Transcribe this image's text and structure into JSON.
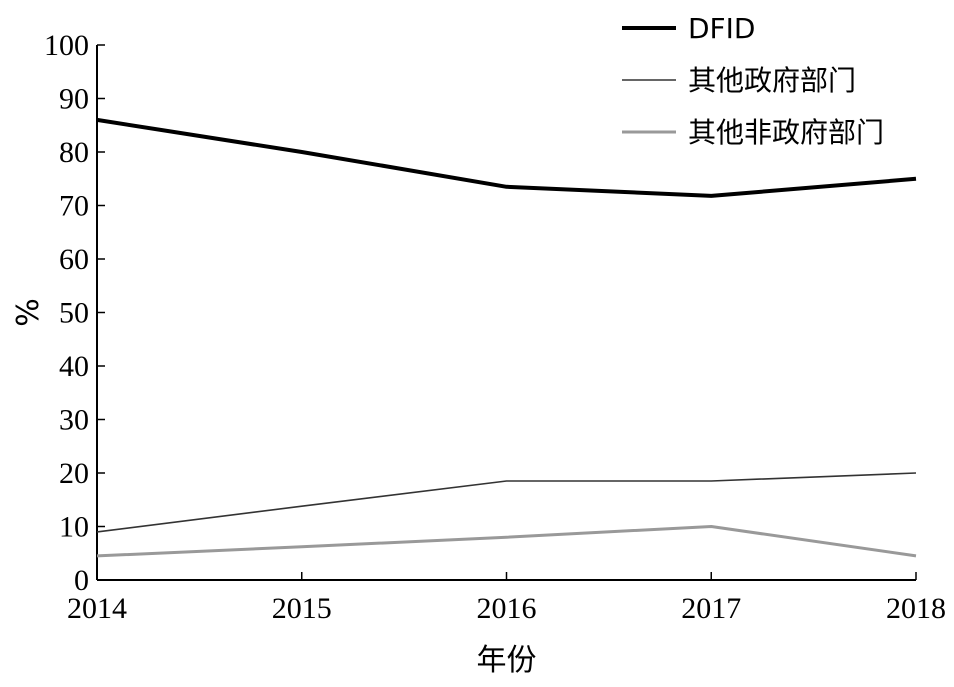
{
  "chart_data": {
    "type": "line",
    "title": "",
    "xlabel": "年份",
    "ylabel": "%",
    "categories": [
      "2014",
      "2015",
      "2016",
      "2017",
      "2018"
    ],
    "x": [
      2014,
      2015,
      2016,
      2017,
      2018
    ],
    "xlim": [
      2014,
      2018
    ],
    "ylim": [
      0,
      100
    ],
    "yticks": [
      0,
      10,
      20,
      30,
      40,
      50,
      60,
      70,
      80,
      90,
      100
    ],
    "grid": false,
    "legend_position": "top-right",
    "series": [
      {
        "name": "DFID",
        "values": [
          86,
          80,
          73.5,
          71.8,
          75
        ],
        "color": "#000000",
        "weight": "thick"
      },
      {
        "name": "其他政府部门",
        "values": [
          9,
          13.8,
          18.5,
          18.5,
          20
        ],
        "color": "#333333",
        "weight": "thin"
      },
      {
        "name": "其他非政府部门",
        "values": [
          4.5,
          6.2,
          8,
          10,
          4.5
        ],
        "color": "#999999",
        "weight": "medium"
      }
    ]
  }
}
